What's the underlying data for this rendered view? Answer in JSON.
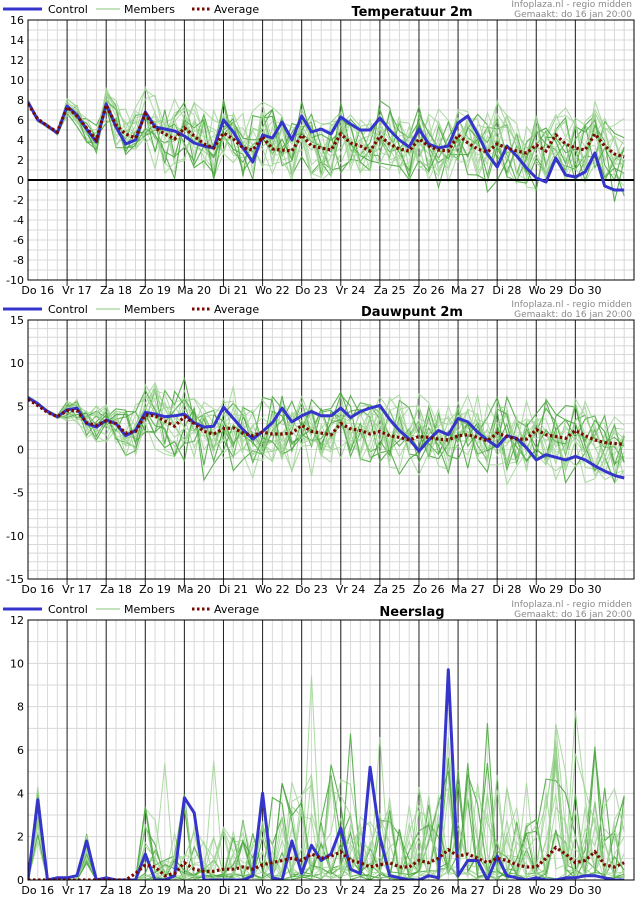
{
  "legend": {
    "control": "Control",
    "members": "Members",
    "average": "Average"
  },
  "credit": {
    "line1": "Infoplaza.nl - regio midden",
    "line2": "Gemaakt: do 16 jan 20:00"
  },
  "colors": {
    "control": "#3535cc",
    "members": "#56b04a",
    "average": "#7a0a00",
    "zero_line": "#000000",
    "grid": "#d8d8d8",
    "day_line": "#222222"
  },
  "chart_data": [
    {
      "type": "line",
      "title": "Temperatuur 2m",
      "ylim": [
        -10,
        16
      ],
      "yticks": [
        -10,
        -8,
        -6,
        -4,
        -2,
        0,
        2,
        4,
        6,
        8,
        10,
        12,
        14,
        16
      ],
      "zero_line": true,
      "day_labels": [
        "Do 16",
        "Vr 17",
        "Za 18",
        "Zo 19",
        "Ma 20",
        "Di 21",
        "Wo 22",
        "Do 23",
        "Vr 24",
        "Za 25",
        "Zo 26",
        "Ma 27",
        "Di 28",
        "Wo 29",
        "Do 30"
      ],
      "series": [
        {
          "name": "Control",
          "values": [
            7.8,
            6.0,
            5.4,
            4.7,
            7.4,
            6.5,
            5.1,
            3.8,
            7.6,
            5.3,
            3.6,
            4.0,
            6.8,
            5.3,
            5.1,
            4.9,
            4.4,
            3.7,
            3.4,
            3.2,
            6.0,
            4.8,
            3.2,
            1.8,
            4.5,
            4.2,
            5.8,
            4.0,
            6.4,
            4.8,
            5.1,
            4.6,
            6.3,
            5.6,
            5.0,
            5.0,
            6.2,
            5.0,
            4.0,
            3.3,
            5.1,
            3.6,
            3.2,
            3.4,
            5.7,
            6.4,
            4.6,
            2.6,
            1.3,
            3.4,
            2.4,
            1.2,
            0.2,
            -0.2,
            2.2,
            0.5,
            0.3,
            0.8,
            2.7,
            -0.6,
            -1.0,
            -1.0
          ]
        },
        {
          "name": "Average",
          "values": [
            7.6,
            6.1,
            5.4,
            4.8,
            7.3,
            6.4,
            5.2,
            4.0,
            7.5,
            5.5,
            4.6,
            4.2,
            6.6,
            5.2,
            4.6,
            4.1,
            5.2,
            4.4,
            3.6,
            3.2,
            4.7,
            4.1,
            3.2,
            3.0,
            4.3,
            3.1,
            3.0,
            2.9,
            4.5,
            3.4,
            3.2,
            3.0,
            4.6,
            3.7,
            3.4,
            2.9,
            4.4,
            3.6,
            3.1,
            2.9,
            4.1,
            3.4,
            3.0,
            2.9,
            4.5,
            3.7,
            3.1,
            2.8,
            3.6,
            3.2,
            2.9,
            2.7,
            3.5,
            2.9,
            4.5,
            3.6,
            3.2,
            3.0,
            4.6,
            3.4,
            2.6,
            2.3
          ]
        }
      ]
    },
    {
      "type": "line",
      "title": "Dauwpunt 2m",
      "ylim": [
        -15,
        15
      ],
      "yticks": [
        -15,
        -10,
        -5,
        0,
        5,
        10,
        15
      ],
      "zero_line": false,
      "day_labels": [
        "Do 16",
        "Vr 17",
        "Za 18",
        "Zo 19",
        "Ma 20",
        "Di 21",
        "Wo 22",
        "Do 23",
        "Vr 24",
        "Za 25",
        "Zo 26",
        "Ma 27",
        "Di 28",
        "Wo 29",
        "Do 30"
      ],
      "series": [
        {
          "name": "Control",
          "values": [
            6.0,
            5.3,
            4.4,
            3.8,
            4.6,
            4.8,
            3.0,
            2.6,
            3.4,
            3.0,
            1.6,
            2.2,
            4.3,
            4.1,
            3.8,
            3.9,
            4.1,
            3.1,
            2.6,
            2.7,
            4.9,
            3.6,
            2.3,
            1.2,
            2.1,
            3.1,
            4.8,
            3.2,
            3.9,
            4.4,
            3.9,
            3.9,
            4.8,
            3.7,
            4.4,
            4.8,
            5.1,
            3.5,
            2.2,
            1.2,
            -0.2,
            1.1,
            2.2,
            1.7,
            3.6,
            3.2,
            2.0,
            1.1,
            0.3,
            1.6,
            1.3,
            0.2,
            -1.2,
            -0.6,
            -0.9,
            -1.2,
            -0.8,
            -1.2,
            -1.9,
            -2.5,
            -3.0,
            -3.3
          ]
        },
        {
          "name": "Average",
          "values": [
            5.8,
            5.1,
            4.3,
            3.8,
            4.5,
            4.5,
            3.1,
            2.8,
            3.3,
            3.0,
            1.9,
            2.1,
            4.0,
            3.9,
            3.3,
            2.7,
            3.8,
            3.0,
            2.1,
            1.8,
            2.4,
            2.5,
            1.9,
            1.6,
            2.0,
            1.8,
            1.8,
            1.9,
            2.8,
            2.1,
            1.9,
            1.7,
            3.0,
            2.4,
            2.2,
            1.8,
            2.1,
            1.6,
            1.4,
            1.1,
            1.5,
            1.4,
            1.2,
            1.1,
            1.6,
            1.7,
            1.4,
            1.0,
            1.9,
            1.5,
            1.2,
            1.2,
            2.3,
            1.7,
            1.5,
            1.3,
            2.2,
            1.6,
            1.1,
            0.8,
            0.7,
            0.6
          ]
        }
      ]
    },
    {
      "type": "line",
      "title": "Neerslag",
      "ylim": [
        0,
        12
      ],
      "yticks": [
        0,
        2,
        4,
        6,
        8,
        10,
        12
      ],
      "zero_line": false,
      "day_labels": [
        "Do 16",
        "Vr 17",
        "Za 18",
        "Zo 19",
        "Ma 20",
        "Di 21",
        "Wo 22",
        "Do 23",
        "Vr 24",
        "Za 25",
        "Zo 26",
        "Ma 27",
        "Di 28",
        "Wo 29",
        "Do 30"
      ],
      "series": [
        {
          "name": "Control",
          "values": [
            0.0,
            3.7,
            0.0,
            0.1,
            0.1,
            0.2,
            1.8,
            0.0,
            0.1,
            0.0,
            0.0,
            0.0,
            1.2,
            0.0,
            0.0,
            0.2,
            3.8,
            3.1,
            0.0,
            0.0,
            0.0,
            0.0,
            0.0,
            0.2,
            4.0,
            0.1,
            0.0,
            1.8,
            0.3,
            1.6,
            0.9,
            1.2,
            2.4,
            0.5,
            0.3,
            5.2,
            2.0,
            0.2,
            0.1,
            0.0,
            0.0,
            0.2,
            0.1,
            9.7,
            0.2,
            0.9,
            0.9,
            0.0,
            1.1,
            0.2,
            0.1,
            0.0,
            0.1,
            0.0,
            0.0,
            0.1,
            0.1,
            0.2,
            0.2,
            0.1,
            0.0,
            0.0
          ]
        },
        {
          "name": "Average",
          "values": [
            0.0,
            0.0,
            0.0,
            0.0,
            0.0,
            0.0,
            0.0,
            0.0,
            0.0,
            0.0,
            0.0,
            0.3,
            0.7,
            0.6,
            0.2,
            0.3,
            0.8,
            0.5,
            0.4,
            0.4,
            0.5,
            0.5,
            0.6,
            0.5,
            0.7,
            0.8,
            0.9,
            1.0,
            0.9,
            1.2,
            1.0,
            1.1,
            1.3,
            0.9,
            0.8,
            0.6,
            0.7,
            0.8,
            0.6,
            0.6,
            0.9,
            0.8,
            1.0,
            1.4,
            1.1,
            1.2,
            1.0,
            0.8,
            1.0,
            0.9,
            0.7,
            0.6,
            0.6,
            1.0,
            1.5,
            1.2,
            0.8,
            0.9,
            1.3,
            0.7,
            0.6,
            0.8
          ]
        }
      ]
    }
  ]
}
